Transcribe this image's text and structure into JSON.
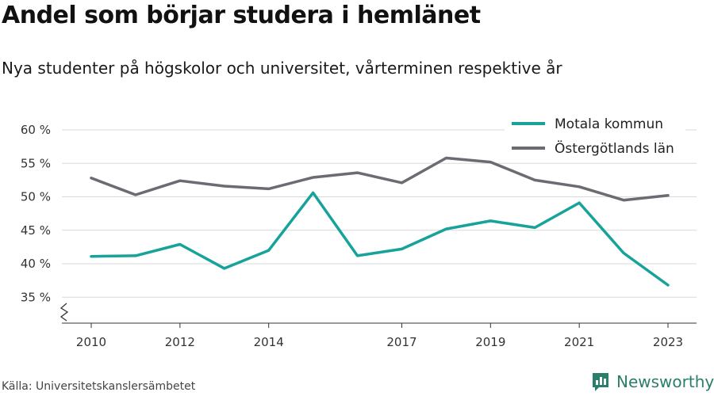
{
  "header": {
    "title": "Andel som börjar studera i hemlänet",
    "subtitle": "Nya studenter på högskolor och universitet, vårterminen respektive år"
  },
  "footer": {
    "source": "Källa: Universitetskanslersämbetet",
    "brand": "Newsworthy",
    "brand_icon": "newsworthy-logo-icon",
    "brand_color": "#2a7f6a"
  },
  "chart_data": {
    "type": "line",
    "title": "",
    "xlabel": "",
    "ylabel": "",
    "x": [
      2010,
      2011,
      2012,
      2013,
      2014,
      2015,
      2016,
      2017,
      2018,
      2019,
      2020,
      2021,
      2022,
      2023
    ],
    "x_tick_labels": [
      "2010",
      "2012",
      "2014",
      "2017",
      "2019",
      "2021",
      "2023"
    ],
    "y_ticks": [
      35,
      40,
      45,
      50,
      55,
      60
    ],
    "y_tick_labels": [
      "35 %",
      "40 %",
      "45 %",
      "50 %",
      "55 %",
      "60 %"
    ],
    "ylim": [
      31.5,
      61
    ],
    "y_axis_break": true,
    "grid": true,
    "legend_position": "top-right",
    "series": [
      {
        "name": "Motala kommun",
        "color": "#17a39a",
        "values": [
          41.1,
          41.2,
          42.9,
          39.3,
          42.0,
          50.6,
          41.2,
          42.2,
          45.2,
          46.4,
          45.4,
          49.1,
          41.6,
          36.8
        ]
      },
      {
        "name": "Östergötlands län",
        "color": "#6b6b72",
        "values": [
          52.8,
          50.3,
          52.4,
          51.6,
          51.2,
          52.9,
          53.6,
          52.1,
          55.8,
          55.2,
          52.5,
          51.5,
          49.5,
          50.2
        ]
      }
    ]
  }
}
